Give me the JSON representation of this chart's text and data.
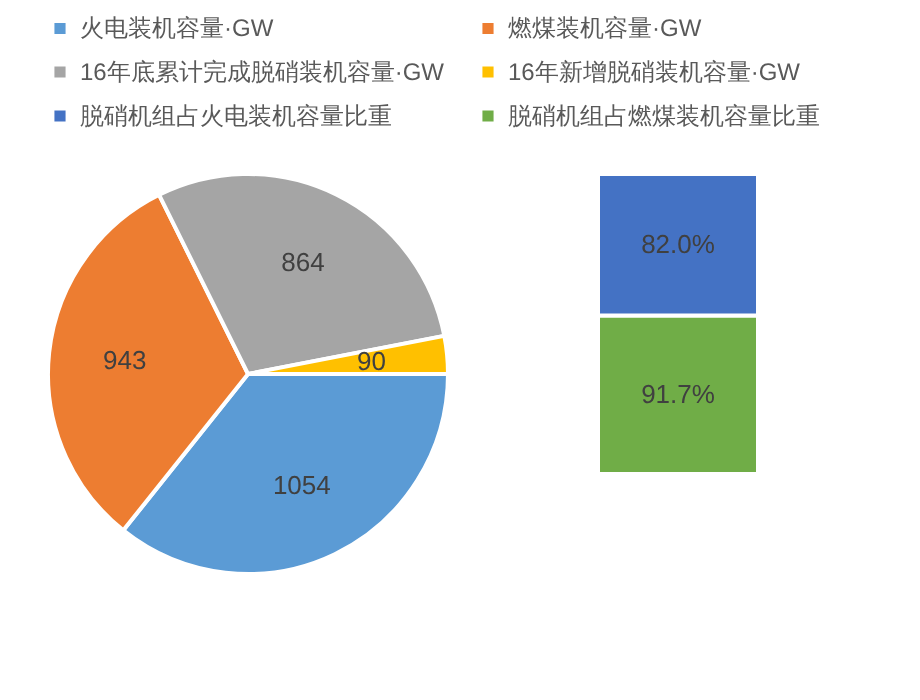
{
  "chart_data": [
    {
      "type": "pie",
      "categories": [
        "火电装机容量·GW",
        "燃煤装机容量·GW",
        "16年底累计完成脱硝装机容量·GW",
        "16年新增脱硝装机容量·GW"
      ],
      "values": [
        1054,
        943,
        864,
        90
      ],
      "colors": [
        "#5b9bd5",
        "#ed7d31",
        "#a5a5a5",
        "#ffc000"
      ],
      "data_labels": true,
      "legend": "top"
    },
    {
      "type": "bar",
      "stacked": true,
      "categories": [
        null
      ],
      "legend": "top",
      "series": [
        {
          "name": "脱硝机组占燃煤装机容量比重",
          "color": "#70ad47",
          "values": [
            91.7
          ],
          "value_labels": [
            "91.7%"
          ]
        },
        {
          "name": "脱硝机组占火电装机容量比重",
          "color": "#4472c4",
          "values": [
            82.0
          ],
          "value_labels": [
            "82.0%"
          ]
        }
      ]
    }
  ]
}
